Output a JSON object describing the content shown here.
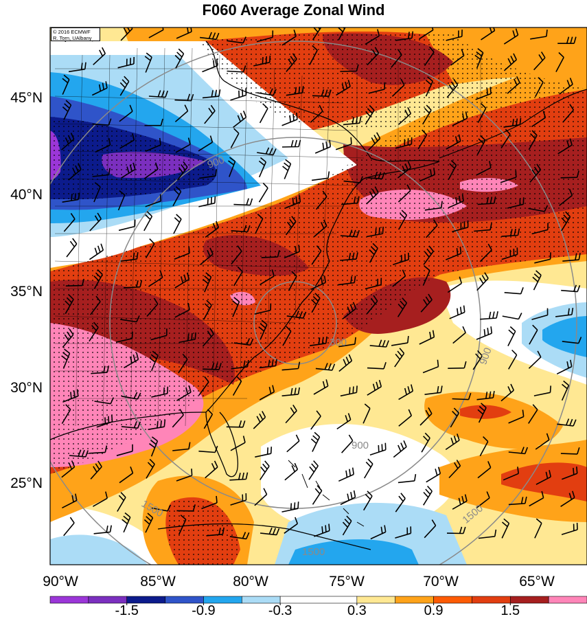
{
  "title": "F060 Average Zonal Wind",
  "credit": {
    "line1": "© 2016 ECMWF",
    "line2": "R. Torn, UAlbany"
  },
  "lat_labels": [
    "45°N",
    "40°N",
    "35°N",
    "30°N",
    "25°N"
  ],
  "lat_values": [
    45,
    40,
    35,
    30,
    25
  ],
  "lon_labels": [
    "90°W",
    "85°W",
    "80°W",
    "75°W",
    "70°W",
    "65°W"
  ],
  "lon_values": [
    -90,
    -85,
    -80,
    -75,
    -70,
    -65
  ],
  "contour_labels": [
    "300",
    "900",
    "1500",
    "900",
    "1500",
    "900",
    "1500"
  ],
  "contour_radii_km": [
    300,
    900,
    1500
  ],
  "colorbar": {
    "labels": [
      "-1.5",
      "-0.9",
      "-0.3",
      "0.3",
      "0.9",
      "1.5"
    ],
    "ticks": [
      -1.5,
      -0.9,
      -0.3,
      0.3,
      0.9,
      1.5
    ],
    "bins": [
      {
        "min": -2.1,
        "max": -1.8,
        "color": "#9b36d8"
      },
      {
        "min": -1.8,
        "max": -1.5,
        "color": "#7b2fbf"
      },
      {
        "min": -1.5,
        "max": -1.2,
        "color": "#0c1b8c"
      },
      {
        "min": -1.2,
        "max": -0.9,
        "color": "#2f54c9"
      },
      {
        "min": -0.9,
        "max": -0.6,
        "color": "#23a6ee"
      },
      {
        "min": -0.6,
        "max": -0.3,
        "color": "#abdcf6"
      },
      {
        "min": -0.3,
        "max": 0.3,
        "color": "#ffffff"
      },
      {
        "min": 0.3,
        "max": 0.6,
        "color": "#ffe893"
      },
      {
        "min": 0.6,
        "max": 0.9,
        "color": "#ffa319"
      },
      {
        "min": 0.9,
        "max": 1.2,
        "color": "#fd5b04"
      },
      {
        "min": 1.2,
        "max": 1.5,
        "color": "#e23e10"
      },
      {
        "min": 1.5,
        "max": 1.8,
        "color": "#a61f1f"
      },
      {
        "min": 1.8,
        "max": 2.1,
        "color": "#ff85b8"
      }
    ]
  },
  "colors": {
    "contour": "#8a8a8a",
    "barb": "#000000",
    "coast": "#000000"
  }
}
